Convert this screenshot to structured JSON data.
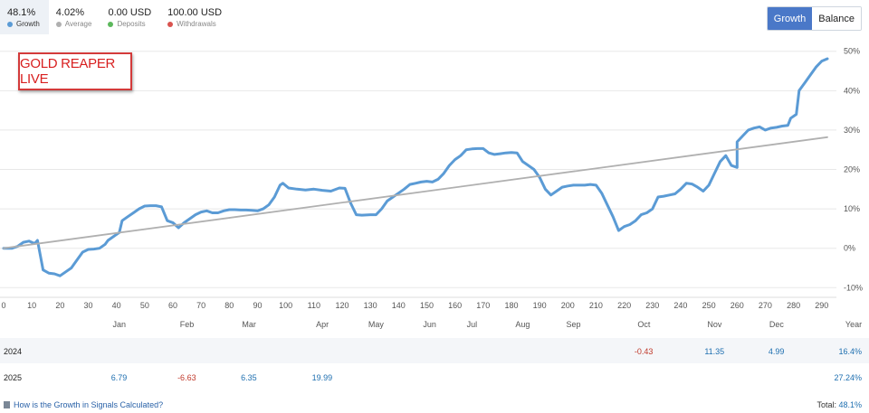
{
  "stats": [
    {
      "value": "48.1%",
      "label": "Growth",
      "color": "#5b9bd5",
      "active": true
    },
    {
      "value": "4.02%",
      "label": "Average",
      "color": "#b0b0b0",
      "active": false
    },
    {
      "value": "0.00 USD",
      "label": "Deposits",
      "color": "#5cb85c",
      "active": false
    },
    {
      "value": "100.00 USD",
      "label": "Withdrawals",
      "color": "#d9534f",
      "active": false
    }
  ],
  "toggle": {
    "growth_label": "Growth",
    "balance_label": "Balance"
  },
  "stamp_text": "GOLD REAPER LIVE",
  "chart_data": {
    "type": "line",
    "x_ticks": [
      0,
      10,
      20,
      30,
      40,
      50,
      60,
      70,
      80,
      90,
      100,
      110,
      120,
      130,
      140,
      150,
      160,
      170,
      180,
      190,
      200,
      210,
      220,
      230,
      240,
      250,
      260,
      270,
      280,
      290
    ],
    "y_ticks": [
      "50%",
      "40%",
      "30%",
      "20%",
      "10%",
      "0%",
      "-10%"
    ],
    "y_tick_values": [
      50,
      40,
      30,
      20,
      10,
      0,
      -10
    ],
    "xlim": [
      0,
      292
    ],
    "ylim": [
      -12,
      52
    ],
    "grid": true,
    "months": [
      {
        "label": "Jan",
        "x": 41
      },
      {
        "label": "Feb",
        "x": 65
      },
      {
        "label": "Mar",
        "x": 87
      },
      {
        "label": "Apr",
        "x": 113
      },
      {
        "label": "May",
        "x": 132
      },
      {
        "label": "Jun",
        "x": 151
      },
      {
        "label": "Jul",
        "x": 166
      },
      {
        "label": "Aug",
        "x": 184
      },
      {
        "label": "Sep",
        "x": 202
      },
      {
        "label": "Oct",
        "x": 227
      },
      {
        "label": "Nov",
        "x": 252
      },
      {
        "label": "Dec",
        "x": 274
      }
    ],
    "year_label": "Year",
    "series": [
      {
        "color": "#5b9bd5",
        "points": [
          [
            0,
            0
          ],
          [
            3,
            0
          ],
          [
            5,
            0.5
          ],
          [
            7,
            1.5
          ],
          [
            9,
            1.8
          ],
          [
            11,
            1.2
          ],
          [
            12,
            2
          ],
          [
            14,
            -5.5
          ],
          [
            16,
            -6.3
          ],
          [
            18,
            -6.5
          ],
          [
            20,
            -7
          ],
          [
            22,
            -6
          ],
          [
            24,
            -5
          ],
          [
            26,
            -3
          ],
          [
            28,
            -1
          ],
          [
            30,
            -0.3
          ],
          [
            32,
            -0.2
          ],
          [
            34,
            0
          ],
          [
            36,
            1
          ],
          [
            37,
            2
          ],
          [
            39,
            3
          ],
          [
            41,
            4
          ],
          [
            42,
            7
          ],
          [
            44,
            8
          ],
          [
            46,
            9
          ],
          [
            48,
            10
          ],
          [
            50,
            10.7
          ],
          [
            52,
            10.8
          ],
          [
            54,
            10.8
          ],
          [
            56,
            10.5
          ],
          [
            58,
            7
          ],
          [
            60,
            6.5
          ],
          [
            62,
            5.2
          ],
          [
            64,
            6.5
          ],
          [
            66,
            7.5
          ],
          [
            68,
            8.5
          ],
          [
            70,
            9.2
          ],
          [
            72,
            9.5
          ],
          [
            74,
            9
          ],
          [
            76,
            9
          ],
          [
            78,
            9.5
          ],
          [
            80,
            9.8
          ],
          [
            82,
            9.8
          ],
          [
            84,
            9.7
          ],
          [
            86,
            9.7
          ],
          [
            88,
            9.6
          ],
          [
            90,
            9.5
          ],
          [
            92,
            10
          ],
          [
            94,
            11
          ],
          [
            96,
            13
          ],
          [
            98,
            16
          ],
          [
            99,
            16.5
          ],
          [
            101,
            15.3
          ],
          [
            104,
            15
          ],
          [
            107,
            14.8
          ],
          [
            110,
            15
          ],
          [
            113,
            14.7
          ],
          [
            116,
            14.5
          ],
          [
            119,
            15.3
          ],
          [
            121,
            15.2
          ],
          [
            123,
            11.5
          ],
          [
            125,
            8.5
          ],
          [
            127,
            8.4
          ],
          [
            130,
            8.5
          ],
          [
            132,
            8.5
          ],
          [
            134,
            10
          ],
          [
            136,
            12
          ],
          [
            138,
            13
          ],
          [
            140,
            14
          ],
          [
            142,
            15
          ],
          [
            144,
            16.2
          ],
          [
            146,
            16.5
          ],
          [
            148,
            16.8
          ],
          [
            150,
            17
          ],
          [
            152,
            16.8
          ],
          [
            154,
            17.5
          ],
          [
            156,
            19
          ],
          [
            158,
            21
          ],
          [
            160,
            22.5
          ],
          [
            162,
            23.5
          ],
          [
            164,
            25
          ],
          [
            166,
            25.2
          ],
          [
            168,
            25.3
          ],
          [
            170,
            25.3
          ],
          [
            172,
            24.2
          ],
          [
            174,
            23.8
          ],
          [
            176,
            24
          ],
          [
            178,
            24.2
          ],
          [
            180,
            24.3
          ],
          [
            182,
            24.2
          ],
          [
            184,
            22
          ],
          [
            186,
            21
          ],
          [
            188,
            20
          ],
          [
            190,
            18
          ],
          [
            192,
            15
          ],
          [
            194,
            13.5
          ],
          [
            196,
            14.5
          ],
          [
            198,
            15.5
          ],
          [
            200,
            15.8
          ],
          [
            202,
            16
          ],
          [
            204,
            16
          ],
          [
            206,
            16
          ],
          [
            208,
            16.2
          ],
          [
            210,
            16
          ],
          [
            212,
            14
          ],
          [
            214,
            11
          ],
          [
            216,
            8
          ],
          [
            218,
            4.5
          ],
          [
            220,
            5.5
          ],
          [
            222,
            6
          ],
          [
            224,
            7
          ],
          [
            226,
            8.5
          ],
          [
            228,
            9
          ],
          [
            230,
            10
          ],
          [
            232,
            13
          ],
          [
            234,
            13.2
          ],
          [
            236,
            13.5
          ],
          [
            238,
            13.8
          ],
          [
            240,
            15
          ],
          [
            242,
            16.5
          ],
          [
            244,
            16.3
          ],
          [
            246,
            15.5
          ],
          [
            248,
            14.5
          ],
          [
            250,
            16
          ],
          [
            252,
            19
          ],
          [
            254,
            22
          ],
          [
            256,
            23.5
          ],
          [
            258,
            21
          ],
          [
            260,
            20.5
          ],
          [
            260,
            27
          ],
          [
            262,
            28.5
          ],
          [
            264,
            30
          ],
          [
            266,
            30.5
          ],
          [
            268,
            30.8
          ],
          [
            270,
            30
          ],
          [
            272,
            30.5
          ],
          [
            274,
            30.7
          ],
          [
            276,
            31
          ],
          [
            278,
            31.2
          ],
          [
            279,
            33
          ],
          [
            281,
            34
          ],
          [
            282,
            40
          ],
          [
            284,
            42
          ],
          [
            286,
            44
          ],
          [
            288,
            46
          ],
          [
            290,
            47.5
          ],
          [
            292,
            48.1
          ]
        ]
      },
      {
        "color": "#b0b0b0",
        "points": [
          [
            0,
            0
          ],
          [
            292,
            28.2
          ]
        ]
      }
    ]
  },
  "yearly": [
    {
      "year": "2024",
      "values": [
        {
          "month": "Oct",
          "x": 227,
          "text": "-0.43",
          "sign": "neg"
        },
        {
          "month": "Nov",
          "x": 252,
          "text": "11.35",
          "sign": "pos"
        },
        {
          "month": "Dec",
          "x": 274,
          "text": "4.99",
          "sign": "pos"
        }
      ],
      "total": "16.4%"
    },
    {
      "year": "2025",
      "values": [
        {
          "month": "Jan",
          "x": 41,
          "text": "6.79",
          "sign": "pos"
        },
        {
          "month": "Feb",
          "x": 65,
          "text": "-6.63",
          "sign": "neg"
        },
        {
          "month": "Mar",
          "x": 87,
          "text": "6.35",
          "sign": "pos"
        },
        {
          "month": "Apr",
          "x": 113,
          "text": "19.99",
          "sign": "pos"
        }
      ],
      "total": "27.24%"
    }
  ],
  "footer": {
    "link": "How is the Growth in Signals Calculated?",
    "total_label": "Total:",
    "total_value": "48.1%"
  }
}
